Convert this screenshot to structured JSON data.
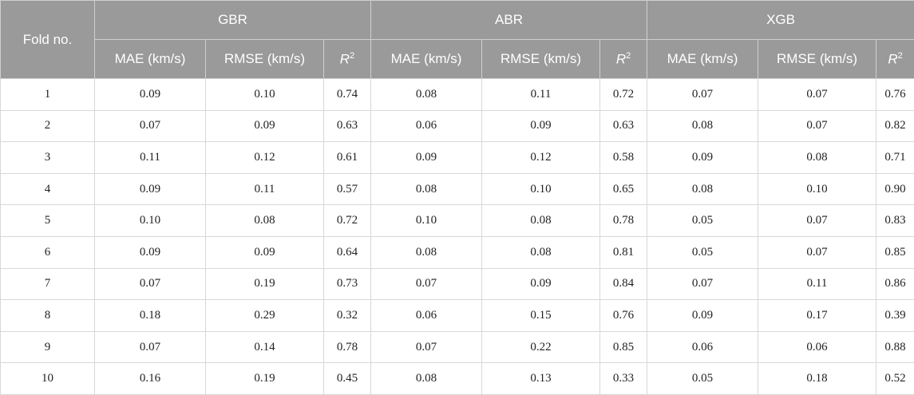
{
  "header": {
    "fold": "Fold no.",
    "groups": [
      "GBR",
      "ABR",
      "XGB"
    ],
    "mae": "MAE (km/s)",
    "rmse": "RMSE (km/s)",
    "r2_base": "R",
    "r2_sup": "2"
  },
  "rows": [
    {
      "fold": "1",
      "gbr": [
        "0.09",
        "0.10",
        "0.74"
      ],
      "abr": [
        "0.08",
        "0.11",
        "0.72"
      ],
      "xgb": [
        "0.07",
        "0.07",
        "0.76"
      ]
    },
    {
      "fold": "2",
      "gbr": [
        "0.07",
        "0.09",
        "0.63"
      ],
      "abr": [
        "0.06",
        "0.09",
        "0.63"
      ],
      "xgb": [
        "0.08",
        "0.07",
        "0.82"
      ]
    },
    {
      "fold": "3",
      "gbr": [
        "0.11",
        "0.12",
        "0.61"
      ],
      "abr": [
        "0.09",
        "0.12",
        "0.58"
      ],
      "xgb": [
        "0.09",
        "0.08",
        "0.71"
      ]
    },
    {
      "fold": "4",
      "gbr": [
        "0.09",
        "0.11",
        "0.57"
      ],
      "abr": [
        "0.08",
        "0.10",
        "0.65"
      ],
      "xgb": [
        "0.08",
        "0.10",
        "0.90"
      ]
    },
    {
      "fold": "5",
      "gbr": [
        "0.10",
        "0.08",
        "0.72"
      ],
      "abr": [
        "0.10",
        "0.08",
        "0.78"
      ],
      "xgb": [
        "0.05",
        "0.07",
        "0.83"
      ]
    },
    {
      "fold": "6",
      "gbr": [
        "0.09",
        "0.09",
        "0.64"
      ],
      "abr": [
        "0.08",
        "0.08",
        "0.81"
      ],
      "xgb": [
        "0.05",
        "0.07",
        "0.85"
      ]
    },
    {
      "fold": "7",
      "gbr": [
        "0.07",
        "0.19",
        "0.73"
      ],
      "abr": [
        "0.07",
        "0.09",
        "0.84"
      ],
      "xgb": [
        "0.07",
        "0.11",
        "0.86"
      ]
    },
    {
      "fold": "8",
      "gbr": [
        "0.18",
        "0.29",
        "0.32"
      ],
      "abr": [
        "0.06",
        "0.15",
        "0.76"
      ],
      "xgb": [
        "0.09",
        "0.17",
        "0.39"
      ]
    },
    {
      "fold": "9",
      "gbr": [
        "0.07",
        "0.14",
        "0.78"
      ],
      "abr": [
        "0.07",
        "0.22",
        "0.85"
      ],
      "xgb": [
        "0.06",
        "0.06",
        "0.88"
      ]
    },
    {
      "fold": "10",
      "gbr": [
        "0.16",
        "0.19",
        "0.45"
      ],
      "abr": [
        "0.08",
        "0.13",
        "0.33"
      ],
      "xgb": [
        "0.05",
        "0.18",
        "0.52"
      ]
    }
  ]
}
